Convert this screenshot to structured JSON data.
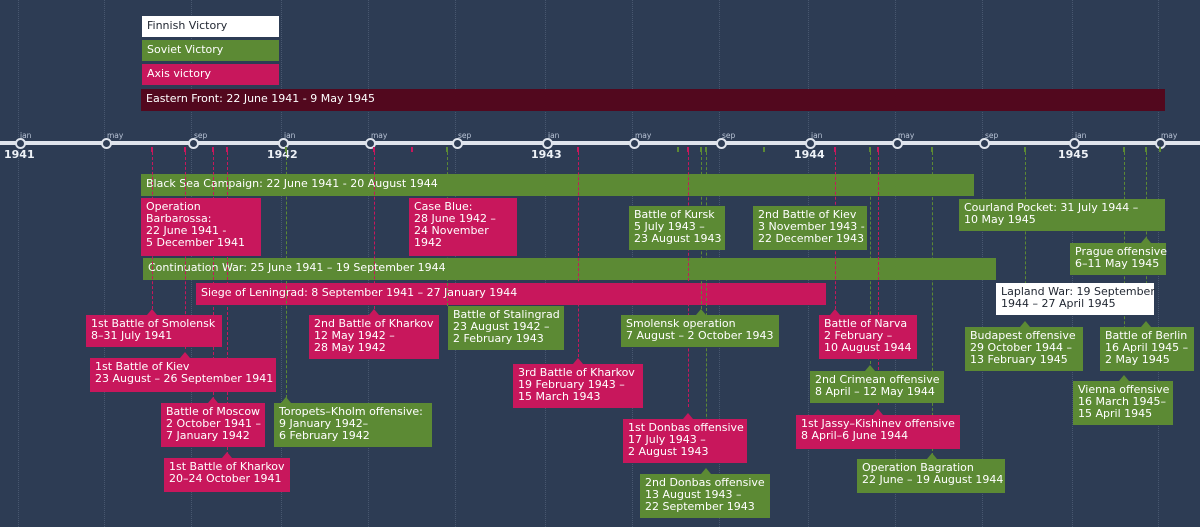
{
  "legend": {
    "finnish": "Finnish Victory",
    "soviet": "Soviet Victory",
    "axis": "Axis victory"
  },
  "axis": {
    "years": [
      "1941",
      "1942",
      "1943",
      "1944",
      "1945"
    ],
    "months": [
      "jan",
      "may",
      "sep",
      "jan",
      "may",
      "sep",
      "jan",
      "may",
      "sep",
      "jan",
      "may",
      "sep",
      "jan",
      "may"
    ]
  },
  "colors": {
    "axis": "#c8175c",
    "soviet": "#5c8a34",
    "finnish": "#ffffff",
    "eastern_front": "#52081e",
    "background": "#2d3c54"
  },
  "events": {
    "eastern_front": "Eastern Front: 22 June 1941 - 9 May 1945",
    "black_sea": "Black Sea Campaign: 22 June 1941 - 20 August 1944",
    "continuation_war": "Continuation War: 25 June 1941 – 19 September 1944",
    "leningrad": "Siege of Leningrad: 8 September 1941 – 27 January 1944",
    "barbarossa": [
      "Operation",
      "Barbarossa:",
      "22 June 1941 -",
      "5 December 1941"
    ],
    "case_blue": [
      "Case Blue:",
      "28 June 1942 –",
      "24 November",
      "1942"
    ],
    "kursk": [
      "Battle of Kursk",
      "5 July 1943 –",
      "23 August 1943"
    ],
    "kiev2": [
      "2nd Battle of Kiev",
      "3 November 1943 -",
      "22 December 1943"
    ],
    "courland": [
      "Courland Pocket:  31 July 1944 –",
      "10 May 1945"
    ],
    "prague": [
      "Prague offensive",
      "6–11 May 1945"
    ],
    "lapland": [
      "Lapland War: 19 September",
      "1944 – 27 April 1945"
    ],
    "smolensk1": [
      "1st Battle of Smolensk",
      "8–31 July 1941"
    ],
    "kharkov2": [
      "2nd Battle of Kharkov",
      "12 May 1942 –",
      "28 May 1942"
    ],
    "stalingrad": [
      "Battle of Stalingrad",
      "23 August 1942 –",
      "2 February 1943"
    ],
    "smolensk_op": [
      "Smolensk operation",
      "7 August – 2 October 1943"
    ],
    "narva": [
      "Battle of Narva",
      "2 February –",
      "10 August 1944"
    ],
    "budapest": [
      "Budapest offensive",
      "29 October 1944 –",
      "13 February 1945"
    ],
    "berlin": [
      "Battle of Berlin",
      "16 April 1945 –",
      "2 May 1945"
    ],
    "kiev1": [
      "1st Battle of Kiev",
      "23 August – 26 September 1941"
    ],
    "kharkov3": [
      "3rd Battle of Kharkov",
      "19 February 1943 –",
      "15 March 1943"
    ],
    "crimean2": [
      "2nd Crimean offensive",
      "8 April – 12 May 1944"
    ],
    "vienna": [
      "Vienna offensive",
      "16 March 1945–",
      "15 April 1945"
    ],
    "moscow": [
      "Battle of Moscow",
      "2 October 1941 –",
      "7 January 1942"
    ],
    "toropets": [
      "Toropets–Kholm offensive:",
      "9 January 1942–",
      "6 February 1942"
    ],
    "donbas1": [
      "1st Donbas offensive",
      "17 July 1943 –",
      "2 August 1943"
    ],
    "jassy": [
      "1st Jassy–Kishinev offensive",
      "8 April–6 June 1944"
    ],
    "kharkov1": [
      "1st Battle of Kharkov",
      "20–24 October 1941"
    ],
    "bagration": [
      "Operation Bagration",
      "22 June – 19 August 1944"
    ],
    "donbas2": [
      "2nd Donbas offensive",
      "13 August 1943 –",
      "22 September 1943"
    ]
  }
}
